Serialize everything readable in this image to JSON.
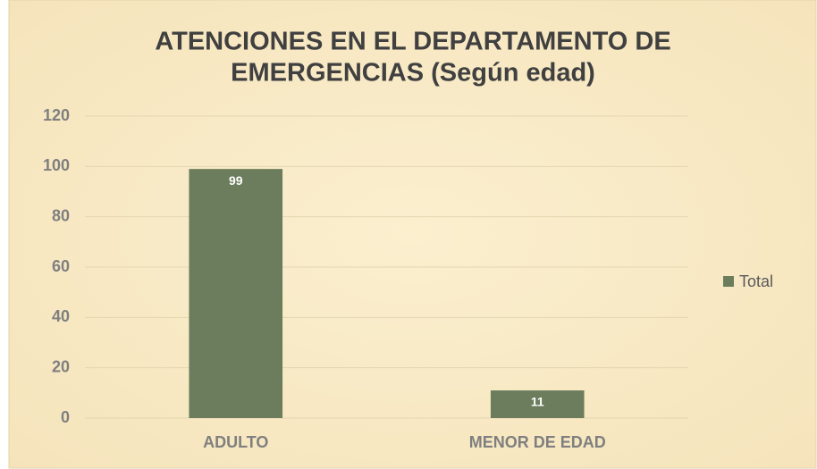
{
  "chart_data": {
    "type": "bar",
    "title": [
      "ATENCIONES EN EL DEPARTAMENTO DE",
      "EMERGENCIAS (Según edad)"
    ],
    "categories": [
      "ADULTO",
      "MENOR DE EDAD"
    ],
    "series": [
      {
        "name": "Total",
        "color": "#6b7d5c",
        "values": [
          99,
          11
        ]
      }
    ],
    "ylim": [
      0,
      120
    ],
    "yticks": [
      0,
      20,
      40,
      60,
      80,
      100,
      120
    ],
    "grid": true,
    "legend": "right"
  }
}
